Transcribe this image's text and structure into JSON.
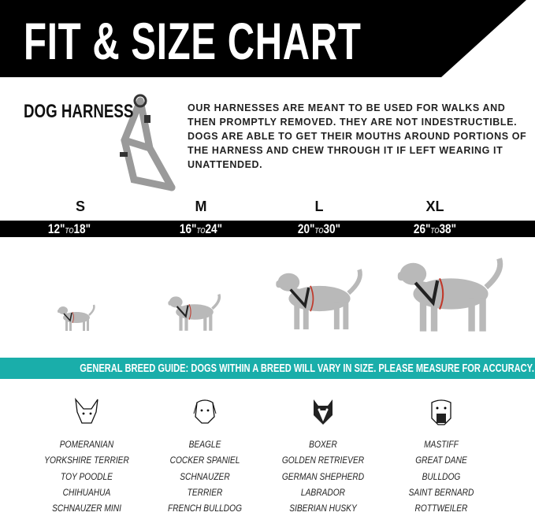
{
  "header": {
    "title": "FIT & SIZE CHART"
  },
  "product": {
    "name": "DOG HARNESS",
    "warning": "OUR HARNESSES ARE MEANT TO BE USED FOR WALKS AND THEN PROMPTLY REMOVED. THEY ARE NOT INDESTRUCTIBLE. DOGS ARE ABLE TO GET THEIR MOUTHS AROUND PORTIONS OF THE HARNESS AND CHEW THROUGH IT IF LEFT WEARING IT UNATTENDED."
  },
  "sizes": [
    {
      "label": "S",
      "from": "12\"",
      "to_word": "TO",
      "to": "18\""
    },
    {
      "label": "M",
      "from": "16\"",
      "to_word": "TO",
      "to": "24\""
    },
    {
      "label": "L",
      "from": "20\"",
      "to_word": "TO",
      "to": "30\""
    },
    {
      "label": "XL",
      "from": "26\"",
      "to_word": "TO",
      "to": "38\""
    }
  ],
  "guide": "GENERAL BREED GUIDE: DOGS WITHIN A BREED WILL VARY IN SIZE. PLEASE MEASURE FOR ACCURACY.",
  "breeds": [
    {
      "icon": "chihuahua-face-icon",
      "items": [
        "POMERANIAN",
        "YORKSHIRE TERRIER",
        "TOY POODLE",
        "CHIHUAHUA",
        "SCHNAUZER MINI"
      ]
    },
    {
      "icon": "beagle-face-icon",
      "items": [
        "BEAGLE",
        "COCKER SPANIEL",
        "SCHNAUZER",
        "TERRIER",
        "FRENCH BULLDOG"
      ]
    },
    {
      "icon": "husky-face-icon",
      "items": [
        "BOXER",
        "GOLDEN RETRIEVER",
        "GERMAN SHEPHERD",
        "LABRADOR",
        "SIBERIAN HUSKY"
      ]
    },
    {
      "icon": "mastiff-face-icon",
      "items": [
        "MASTIFF",
        "GREAT DANE",
        "BULLDOG",
        "SAINT BERNARD",
        "ROTTWEILER"
      ]
    }
  ],
  "colors": {
    "header": "#000000",
    "teal": "#1aaeaa",
    "dog": "#b9b9b9",
    "measure": "#c0392b"
  }
}
